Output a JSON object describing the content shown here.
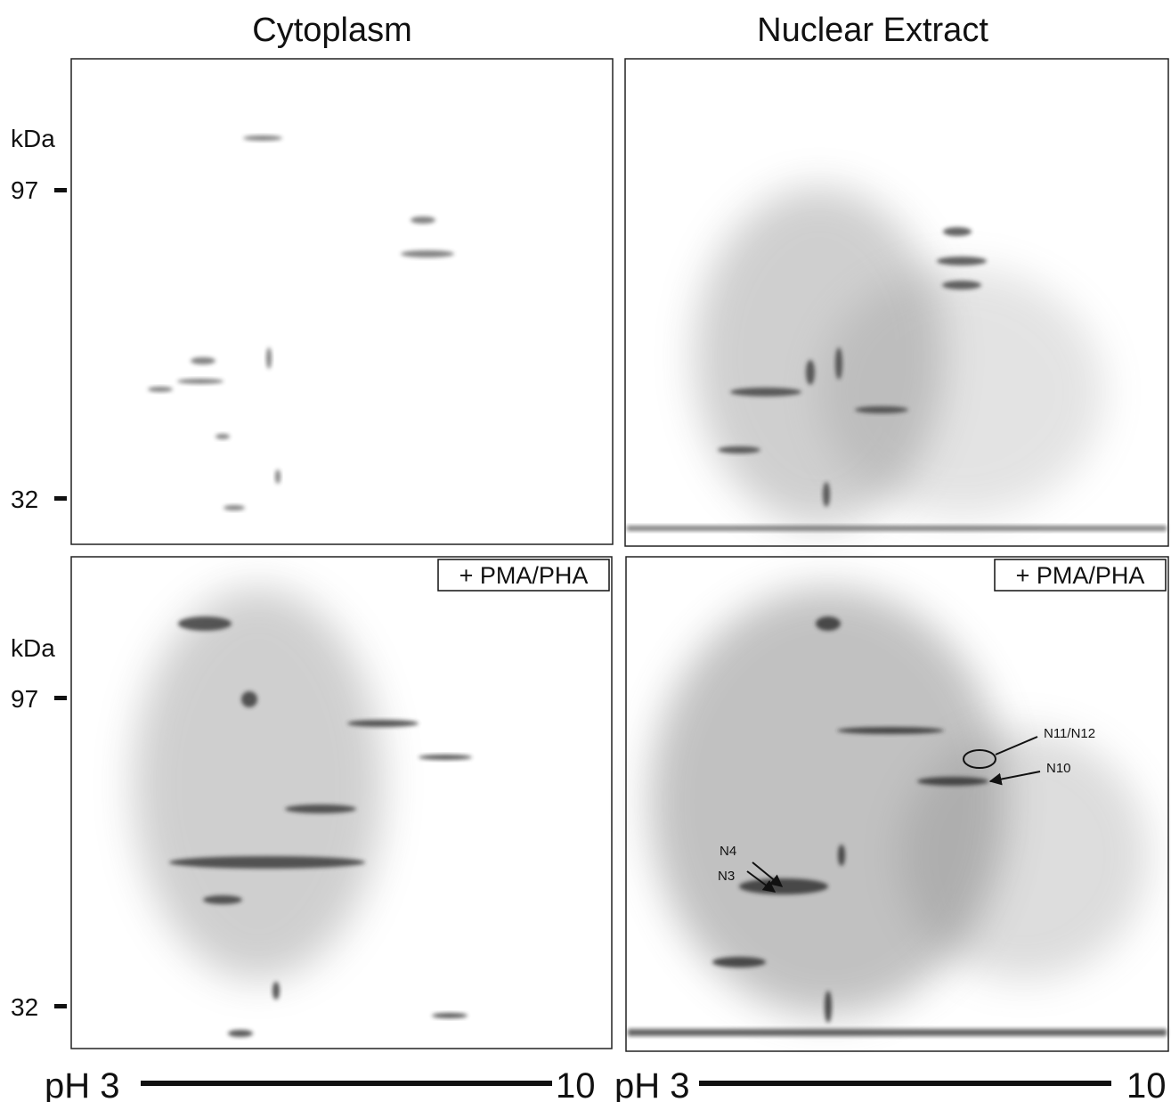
{
  "columns": {
    "left": {
      "title": "Cytoplasm"
    },
    "right": {
      "title": "Nuclear Extract"
    }
  },
  "markers": {
    "top": {
      "unit": "kDa",
      "high": "97",
      "low": "32"
    },
    "bottom": {
      "unit": "kDa",
      "high": "97",
      "low": "32"
    }
  },
  "panels": {
    "bottom_left": {
      "label": "+ PMA/PHA"
    },
    "bottom_right": {
      "label": "+ PMA/PHA",
      "annotations": [
        "N11/N12",
        "N10",
        "N4",
        "N3"
      ]
    }
  },
  "ph_axis": {
    "left": {
      "start": "pH 3",
      "end": "10"
    },
    "right": {
      "start": "pH 3",
      "end": "10"
    }
  }
}
